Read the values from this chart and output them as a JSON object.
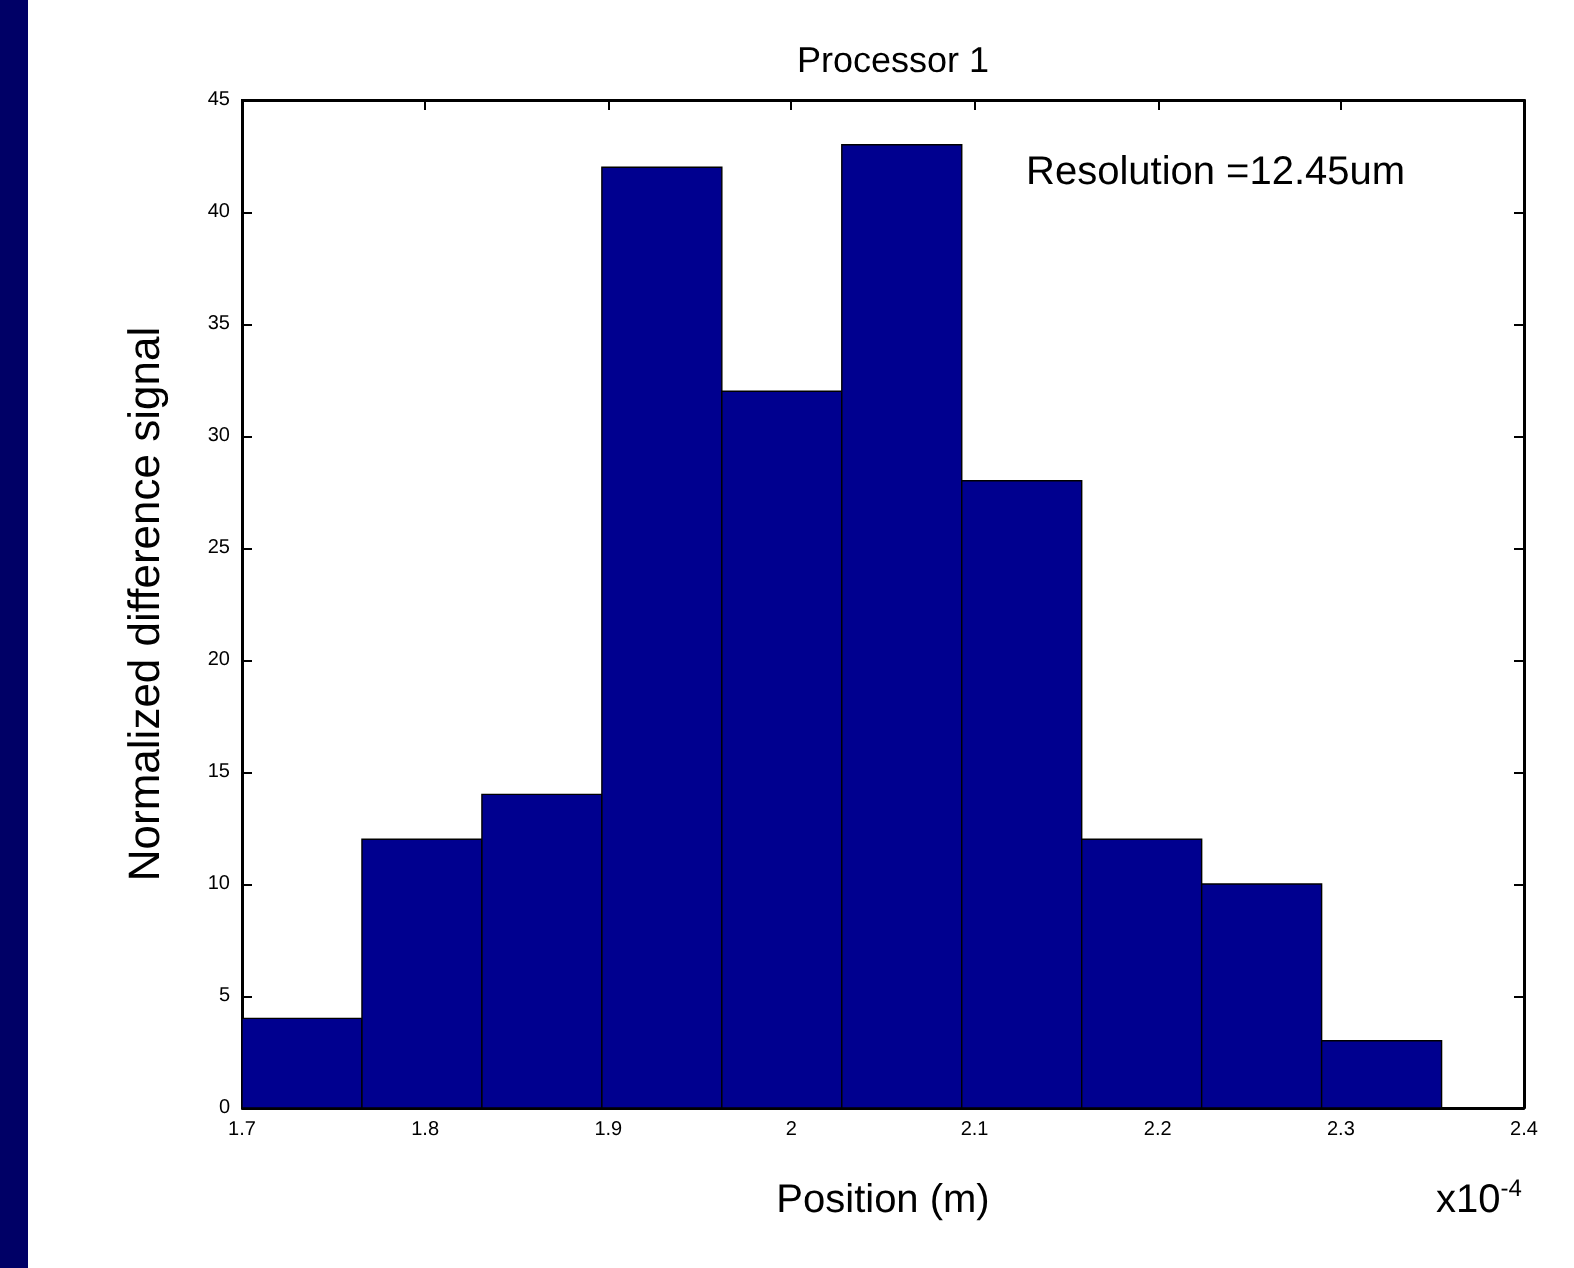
{
  "chart_data": {
    "type": "histogram",
    "title": "Processor 1",
    "xlabel": "Position (m)",
    "ylabel": "Normalized difference signal",
    "bins": [
      1.7,
      1.7655,
      1.831,
      1.8965,
      1.962,
      2.0275,
      2.093,
      2.1585,
      2.224,
      2.2895,
      2.355
    ],
    "values": [
      4,
      12,
      14,
      42,
      32,
      43,
      28,
      12,
      10,
      3
    ],
    "color": "#00008f",
    "xlim": [
      1.7,
      2.4
    ],
    "xticks": [
      1.7,
      1.8,
      1.9,
      2,
      2.1,
      2.2,
      2.3,
      2.4
    ],
    "ylim": [
      0,
      45
    ],
    "yticks": [
      0,
      5,
      10,
      15,
      20,
      25,
      30,
      35,
      40,
      45
    ],
    "annotations": [
      "Resolution =12.45um",
      "x10$^{-4}$"
    ],
    "grid": false
  }
}
